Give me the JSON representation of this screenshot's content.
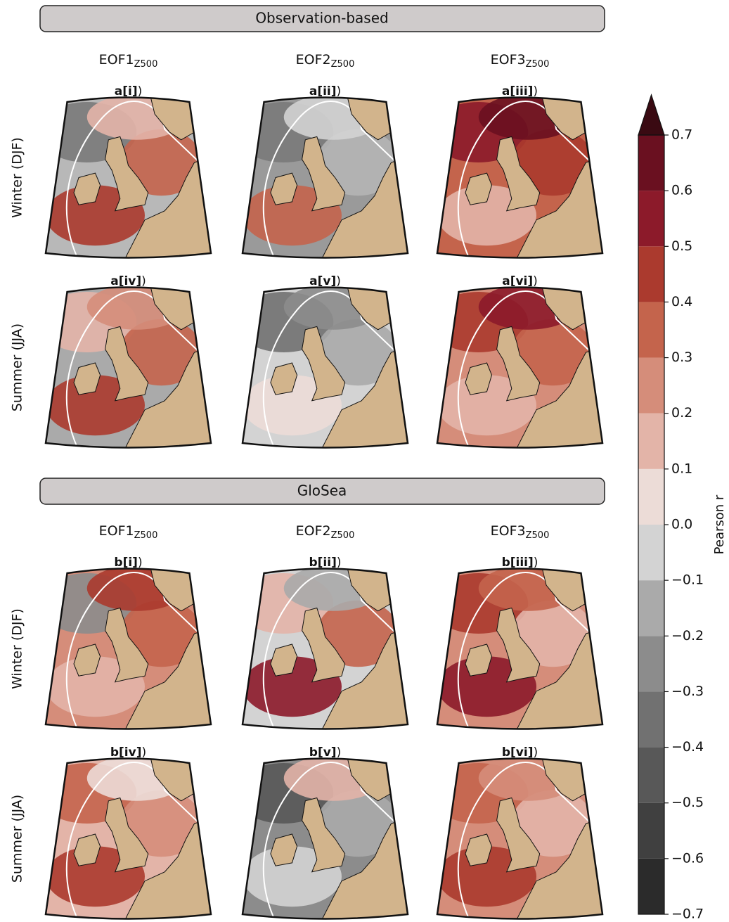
{
  "sections": [
    {
      "title": "Observation-based",
      "columns": [
        {
          "main": "EOF1",
          "sub": "Z500"
        },
        {
          "main": "EOF2",
          "sub": "Z500"
        },
        {
          "main": "EOF3",
          "sub": "Z500"
        }
      ],
      "rows": [
        {
          "label": "Winter (DJF)",
          "panels": [
            {
              "bold": "a[i]",
              "paren": ")"
            },
            {
              "bold": "a[ii]",
              "paren": ")"
            },
            {
              "bold": "a[iii]",
              "paren": ")"
            }
          ]
        },
        {
          "label": "Summer (JJA)",
          "panels": [
            {
              "bold": "a[iv]",
              "paren": ")"
            },
            {
              "bold": "a[v]",
              "paren": ")"
            },
            {
              "bold": "a[vi]",
              "paren": ")"
            }
          ]
        }
      ]
    },
    {
      "title": "GloSea",
      "columns": [
        {
          "main": "EOF1",
          "sub": "Z500"
        },
        {
          "main": "EOF2",
          "sub": "Z500"
        },
        {
          "main": "EOF3",
          "sub": "Z500"
        }
      ],
      "rows": [
        {
          "label": "Winter (DJF)",
          "panels": [
            {
              "bold": "b[i]",
              "paren": ")"
            },
            {
              "bold": "b[ii]",
              "paren": ")"
            },
            {
              "bold": "b[iii]",
              "paren": ")"
            }
          ]
        },
        {
          "label": "Summer (JJA)",
          "panels": [
            {
              "bold": "b[iv]",
              "paren": ")"
            },
            {
              "bold": "b[v]",
              "paren": ")"
            },
            {
              "bold": "b[vi]",
              "paren": ")"
            }
          ]
        }
      ]
    }
  ],
  "chart_data": {
    "type": "colorbar",
    "label": "Pearson r",
    "ylim": [
      -0.7,
      0.7
    ],
    "yticks": [
      {
        "value": -0.7,
        "label": "−0.7"
      },
      {
        "value": -0.6,
        "label": "−0.6"
      },
      {
        "value": -0.5,
        "label": "−0.5"
      },
      {
        "value": -0.4,
        "label": "−0.4"
      },
      {
        "value": -0.3,
        "label": "−0.3"
      },
      {
        "value": -0.2,
        "label": "−0.2"
      },
      {
        "value": -0.1,
        "label": "−0.1"
      },
      {
        "value": 0,
        "label": "0.0"
      },
      0.1,
      0.2,
      0.3,
      0.4,
      0.5,
      0.6,
      0.7
    ],
    "colors": [
      "#2b2b2b",
      "#404040",
      "#585858",
      "#717171",
      "#8c8c8c",
      "#aaaaaa",
      "#d3d3d3",
      "#ecdcd7",
      "#e3b4a8",
      "#d58d7a",
      "#c4644c",
      "#ab3a2e",
      "#8c1a2a",
      "#6a1020"
    ],
    "extend_color": "#3a0a12"
  }
}
